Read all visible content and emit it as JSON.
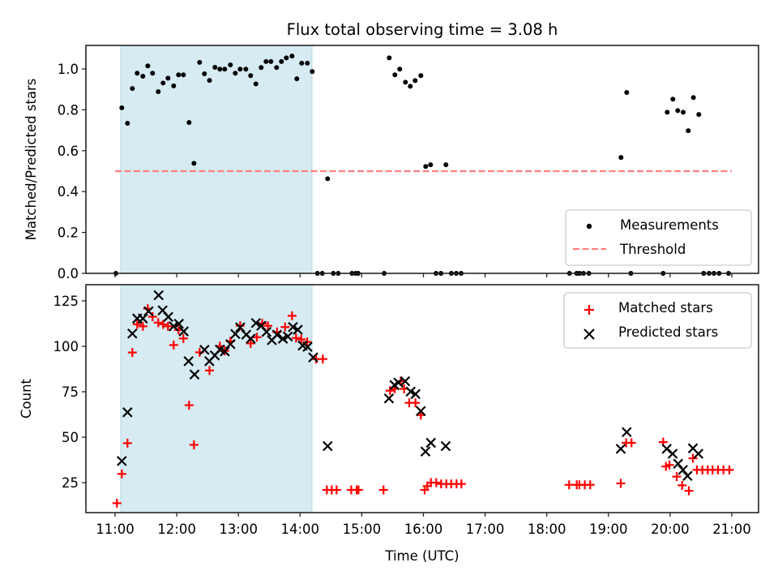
{
  "chart_data": [
    {
      "type": "scatter",
      "title": "Flux total observing time = 3.08 h",
      "xlabel": "",
      "ylabel": "Matched/Predicted stars",
      "xlim": [
        10.527,
        21.434
      ],
      "ylim": [
        0.0,
        1.115
      ],
      "yticks": [
        0.0,
        0.2,
        0.4,
        0.6,
        0.8,
        1.0
      ],
      "ytick_labels": [
        "0.0",
        "0.2",
        "0.4",
        "0.6",
        "0.8",
        "1.0"
      ],
      "x_units": "hours UTC",
      "shaded_span": {
        "start": 11.092,
        "end": 14.193,
        "color": "#add8e6"
      },
      "threshold": {
        "name": "Threshold",
        "value": 0.5,
        "xstart": 11.0,
        "xend": 21.0,
        "color": "#ff7f7f",
        "style": "dashed"
      },
      "legend": {
        "placement": "lower-right",
        "entries": [
          "Measurements",
          "Threshold"
        ]
      },
      "series": [
        {
          "name": "Measurements",
          "marker": "dot",
          "color": "#000000",
          "points": [
            [
              11.013,
              0.0
            ],
            [
              11.109,
              0.81
            ],
            [
              11.201,
              0.734
            ],
            [
              11.28,
              0.904
            ],
            [
              11.359,
              0.979
            ],
            [
              11.451,
              0.964
            ],
            [
              11.53,
              1.015
            ],
            [
              11.608,
              0.979
            ],
            [
              11.7,
              0.889
            ],
            [
              11.779,
              0.931
            ],
            [
              11.858,
              0.955
            ],
            [
              11.95,
              0.917
            ],
            [
              12.029,
              0.971
            ],
            [
              12.108,
              0.971
            ],
            [
              12.2,
              0.738
            ],
            [
              12.279,
              0.538
            ],
            [
              12.371,
              1.032
            ],
            [
              12.449,
              0.976
            ],
            [
              12.531,
              0.944
            ],
            [
              12.62,
              1.008
            ],
            [
              12.699,
              0.999
            ],
            [
              12.778,
              0.999
            ],
            [
              12.87,
              1.02
            ],
            [
              12.949,
              0.979
            ],
            [
              13.028,
              0.999
            ],
            [
              13.12,
              0.999
            ],
            [
              13.198,
              0.967
            ],
            [
              13.283,
              0.927
            ],
            [
              13.369,
              1.007
            ],
            [
              13.448,
              1.036
            ],
            [
              13.527,
              1.036
            ],
            [
              13.619,
              1.007
            ],
            [
              13.698,
              1.036
            ],
            [
              13.777,
              1.054
            ],
            [
              13.869,
              1.063
            ],
            [
              13.947,
              0.952
            ],
            [
              14.026,
              1.028
            ],
            [
              14.118,
              1.028
            ],
            [
              14.197,
              0.987
            ],
            [
              14.281,
              0.0
            ],
            [
              14.36,
              0.0
            ],
            [
              14.447,
              0.463
            ],
            [
              14.539,
              0.0
            ],
            [
              14.618,
              0.0
            ],
            [
              14.841,
              0.0
            ],
            [
              14.903,
              0.0
            ],
            [
              14.942,
              0.0
            ],
            [
              15.363,
              0.0
            ],
            [
              15.446,
              1.054
            ],
            [
              15.537,
              0.971
            ],
            [
              15.616,
              0.999
            ],
            [
              15.708,
              0.935
            ],
            [
              15.787,
              0.915
            ],
            [
              15.866,
              0.943
            ],
            [
              15.958,
              0.967
            ],
            [
              16.037,
              0.523
            ],
            [
              16.116,
              0.531
            ],
            [
              16.204,
              0.0
            ],
            [
              16.283,
              0.0
            ],
            [
              16.365,
              0.531
            ],
            [
              16.453,
              0.0
            ],
            [
              16.532,
              0.0
            ],
            [
              16.611,
              0.0
            ],
            [
              18.368,
              0.0
            ],
            [
              18.486,
              0.0
            ],
            [
              18.53,
              0.0
            ],
            [
              18.595,
              0.0
            ],
            [
              18.683,
              0.0
            ],
            [
              19.204,
              0.567
            ],
            [
              19.296,
              0.885
            ],
            [
              19.364,
              0.0
            ],
            [
              19.887,
              0.0
            ],
            [
              19.953,
              0.788
            ],
            [
              20.045,
              0.852
            ],
            [
              20.124,
              0.796
            ],
            [
              20.212,
              0.788
            ],
            [
              20.294,
              0.698
            ],
            [
              20.378,
              0.86
            ],
            [
              20.465,
              0.777
            ],
            [
              20.544,
              0.0
            ],
            [
              20.632,
              0.0
            ],
            [
              20.711,
              0.0
            ],
            [
              20.794,
              0.0
            ],
            [
              20.947,
              0.0
            ]
          ]
        }
      ]
    },
    {
      "type": "scatter",
      "title": "",
      "xlabel": "Time (UTC)",
      "ylabel": "Count",
      "xlim": [
        10.527,
        21.434
      ],
      "ylim": [
        8.5,
        133.9
      ],
      "yticks": [
        25,
        50,
        75,
        100,
        125
      ],
      "ytick_labels": [
        "25",
        "50",
        "75",
        "100",
        "125"
      ],
      "xticks": [
        11,
        12,
        13,
        14,
        15,
        16,
        17,
        18,
        19,
        20,
        21
      ],
      "xtick_labels": [
        "11:00",
        "12:00",
        "13:00",
        "14:00",
        "15:00",
        "16:00",
        "17:00",
        "18:00",
        "19:00",
        "20:00",
        "21:00"
      ],
      "x_units": "hours UTC",
      "shaded_span": {
        "start": 11.092,
        "end": 14.193,
        "color": "#add8e6"
      },
      "legend": {
        "placement": "upper-right",
        "entries": [
          "Matched stars",
          "Predicted stars"
        ]
      },
      "series": [
        {
          "name": "Matched stars",
          "marker": "plus",
          "color": "#ff0000",
          "points": [
            [
              11.03,
              13.7
            ],
            [
              11.109,
              29.8
            ],
            [
              11.201,
              46.7
            ],
            [
              11.28,
              96.6
            ],
            [
              11.359,
              112.1
            ],
            [
              11.451,
              111.0
            ],
            [
              11.53,
              120.7
            ],
            [
              11.608,
              116.3
            ],
            [
              11.7,
              113.0
            ],
            [
              11.779,
              112.1
            ],
            [
              11.858,
              111.0
            ],
            [
              11.95,
              100.7
            ],
            [
              12.029,
              109.0
            ],
            [
              12.108,
              104.3
            ],
            [
              12.2,
              67.6
            ],
            [
              12.279,
              45.8
            ],
            [
              12.371,
              96.7
            ],
            [
              12.531,
              86.7
            ],
            [
              12.699,
              100.1
            ],
            [
              12.778,
              97.5
            ],
            [
              12.87,
              102.8
            ],
            [
              13.028,
              111.3
            ],
            [
              13.198,
              101.6
            ],
            [
              13.299,
              105.0
            ],
            [
              13.386,
              112.6
            ],
            [
              13.478,
              111.3
            ],
            [
              13.625,
              107.9
            ],
            [
              13.757,
              110.6
            ],
            [
              13.87,
              116.8
            ],
            [
              13.935,
              104.6
            ],
            [
              14.019,
              103.8
            ],
            [
              14.115,
              102.4
            ],
            [
              14.259,
              93.0
            ],
            [
              14.368,
              93.0
            ],
            [
              14.434,
              21.0
            ],
            [
              14.513,
              21.0
            ],
            [
              14.592,
              21.0
            ],
            [
              14.829,
              21.0
            ],
            [
              14.917,
              21.0
            ],
            [
              14.947,
              21.0
            ],
            [
              15.353,
              21.0
            ],
            [
              15.459,
              75.6
            ],
            [
              15.534,
              76.6
            ],
            [
              15.63,
              80.8
            ],
            [
              15.687,
              76.6
            ],
            [
              15.77,
              68.9
            ],
            [
              15.871,
              68.9
            ],
            [
              15.958,
              62.2
            ],
            [
              16.02,
              21.0
            ],
            [
              16.063,
              23.1
            ],
            [
              16.121,
              25.0
            ],
            [
              16.208,
              25.0
            ],
            [
              16.287,
              24.3
            ],
            [
              16.371,
              24.3
            ],
            [
              16.45,
              24.3
            ],
            [
              16.537,
              24.3
            ],
            [
              16.616,
              24.3
            ],
            [
              18.363,
              23.8
            ],
            [
              18.486,
              23.8
            ],
            [
              18.529,
              23.8
            ],
            [
              18.617,
              23.8
            ],
            [
              18.704,
              23.8
            ],
            [
              19.2,
              24.6
            ],
            [
              19.287,
              46.9
            ],
            [
              19.374,
              46.9
            ],
            [
              19.888,
              47.3
            ],
            [
              19.932,
              33.9
            ],
            [
              19.989,
              34.7
            ],
            [
              20.107,
              28.3
            ],
            [
              20.195,
              23.5
            ],
            [
              20.304,
              20.5
            ],
            [
              20.37,
              38.4
            ],
            [
              20.435,
              32.0
            ],
            [
              20.523,
              32.0
            ],
            [
              20.61,
              32.0
            ],
            [
              20.689,
              32.0
            ],
            [
              20.777,
              32.0
            ],
            [
              20.865,
              32.0
            ],
            [
              20.961,
              32.0
            ]
          ]
        },
        {
          "name": "Predicted stars",
          "marker": "x",
          "color": "#000000",
          "points": [
            [
              11.109,
              36.9
            ],
            [
              11.201,
              63.7
            ],
            [
              11.28,
              107.0
            ],
            [
              11.359,
              115.3
            ],
            [
              11.451,
              115.3
            ],
            [
              11.543,
              119.3
            ],
            [
              11.706,
              128.1
            ],
            [
              11.771,
              119.8
            ],
            [
              11.863,
              116.2
            ],
            [
              11.95,
              111.0
            ],
            [
              12.034,
              112.4
            ],
            [
              12.113,
              108.2
            ],
            [
              12.192,
              91.8
            ],
            [
              12.288,
              84.5
            ],
            [
              12.45,
              98.1
            ],
            [
              12.529,
              91.8
            ],
            [
              12.617,
              95.0
            ],
            [
              12.7,
              98.2
            ],
            [
              12.779,
              97.2
            ],
            [
              12.871,
              101.2
            ],
            [
              12.95,
              106.8
            ],
            [
              13.029,
              110.4
            ],
            [
              13.126,
              106.4
            ],
            [
              13.2,
              104.2
            ],
            [
              13.284,
              112.8
            ],
            [
              13.371,
              111.3
            ],
            [
              13.455,
              107.9
            ],
            [
              13.542,
              103.4
            ],
            [
              13.626,
              106.4
            ],
            [
              13.722,
              104.2
            ],
            [
              13.801,
              105.4
            ],
            [
              13.884,
              110.6
            ],
            [
              13.963,
              109.1
            ],
            [
              14.042,
              100.4
            ],
            [
              14.121,
              99.7
            ],
            [
              14.213,
              93.9
            ],
            [
              14.447,
              45.1
            ],
            [
              15.441,
              71.3
            ],
            [
              15.53,
              78.7
            ],
            [
              15.595,
              80.0
            ],
            [
              15.704,
              80.8
            ],
            [
              15.793,
              75.1
            ],
            [
              15.871,
              73.7
            ],
            [
              15.958,
              64.4
            ],
            [
              16.033,
              42.1
            ],
            [
              16.121,
              46.9
            ],
            [
              16.361,
              45.1
            ],
            [
              19.2,
              43.6
            ],
            [
              19.296,
              52.8
            ],
            [
              19.945,
              43.6
            ],
            [
              20.041,
              40.9
            ],
            [
              20.129,
              35.4
            ],
            [
              20.208,
              32.0
            ],
            [
              20.282,
              28.7
            ],
            [
              20.37,
              43.9
            ],
            [
              20.458,
              40.9
            ]
          ]
        }
      ]
    }
  ]
}
